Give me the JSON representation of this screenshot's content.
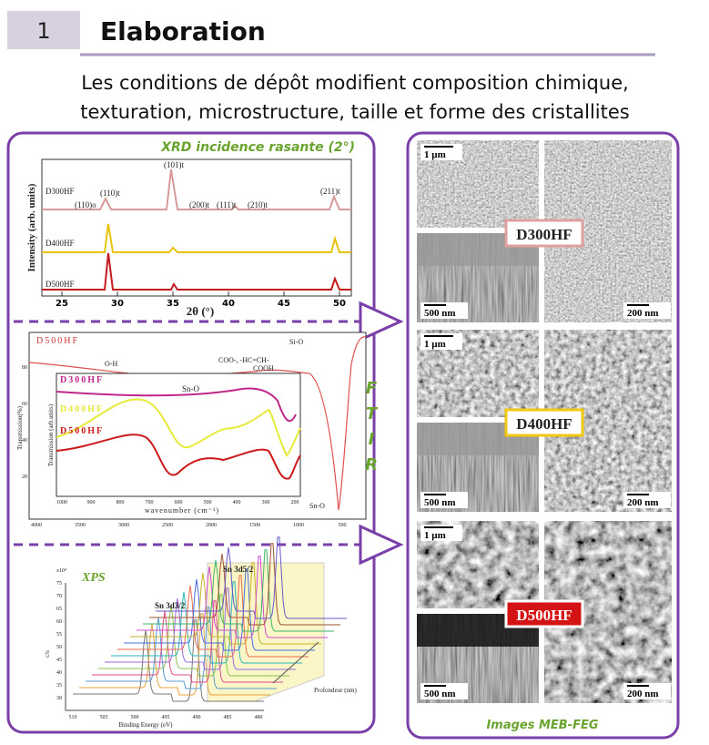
{
  "header": {
    "number": "1",
    "title": "Elaboration"
  },
  "subtitle": [
    "Les conditions de dépôt modifient composition chimique,",
    "texturation, microstructure, taille et forme des cristallites"
  ],
  "xrd": {
    "title": "XRD incidence rasante (2°)",
    "y_label": "Intensity (arb. units)",
    "x_label": "2θ (°)",
    "x_ticks": [
      "25",
      "30",
      "35",
      "40",
      "45",
      "50"
    ],
    "samples": [
      "D300HF",
      "D400HF",
      "D500HF"
    ],
    "peaks": [
      "(110)o",
      "(110)t",
      "(101)t",
      "(200)t",
      "(111)t",
      "(210)t",
      "(211)t"
    ]
  },
  "ftir": {
    "letters": [
      "F",
      "T",
      "I",
      "R"
    ],
    "sample": "D500HF",
    "bands": [
      "O-H",
      "COO-, -HC=CH-",
      "COOH",
      "Sn-O",
      "Sn-O",
      "Si-O"
    ],
    "inset_samples": [
      "D300HF",
      "D400HF",
      "D500HF"
    ],
    "y_label": "Transmission(%)",
    "y_ticks": [
      "80",
      "60",
      "40",
      "20"
    ],
    "x_label": "wavenumber (cm⁻¹)",
    "x_ticks": [
      "4000",
      "3500",
      "3000",
      "2500",
      "2000",
      "1500",
      "1000",
      "500"
    ],
    "inset_y_label": "Transmission (arb.units)",
    "inset_x_ticks": [
      "1000",
      "900",
      "800",
      "700",
      "600",
      "500",
      "400",
      "300",
      "200"
    ]
  },
  "xps": {
    "title": "XPS",
    "peaks": [
      "Sn 3d3/2",
      "Sn 3d5/2"
    ],
    "depth_label": "Profondeur (nm)",
    "x_label": "Binding Energy (eV)",
    "x_ticks": [
      "510",
      "505",
      "500",
      "495",
      "490",
      "485",
      "480"
    ],
    "y_unit": "x10⁴",
    "y_label": "c/s",
    "y_ticks": [
      "75",
      "70",
      "65",
      "60",
      "55",
      "50",
      "45",
      "40",
      "35",
      "30"
    ]
  },
  "meb": {
    "rows": [
      {
        "sample": "D300HF",
        "scales": [
          "1 µm",
          "500 nm",
          "200 nm"
        ]
      },
      {
        "sample": "D400HF",
        "scales": [
          "1 µm",
          "500 nm",
          "200 nm"
        ]
      },
      {
        "sample": "D500HF",
        "scales": [
          "1 µm",
          "500 nm",
          "200 nm"
        ]
      }
    ],
    "caption": "Images MEB-FEG"
  }
}
